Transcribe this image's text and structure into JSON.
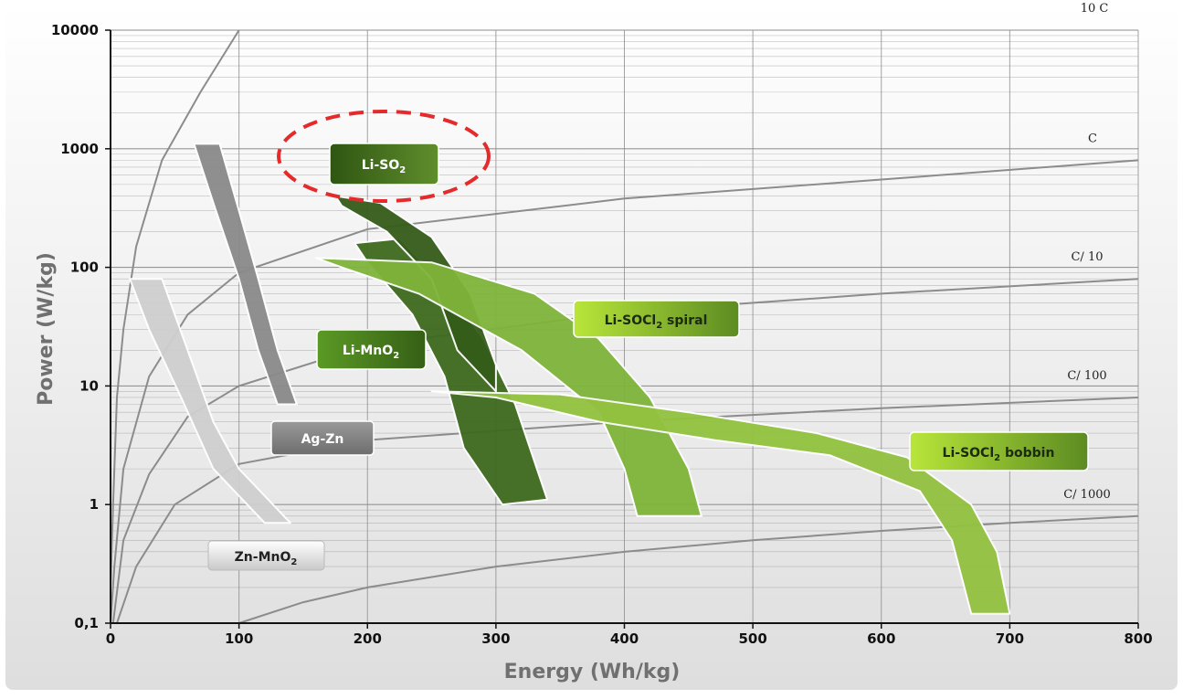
{
  "chart_data": {
    "type": "area",
    "title": "",
    "xlabel": "Energy (Wh/kg)",
    "ylabel": "Power (W/kg)",
    "x_scale": "linear",
    "y_scale": "log",
    "xlim": [
      0,
      800
    ],
    "ylim": [
      0.1,
      10000
    ],
    "x_ticks": [
      0,
      100,
      200,
      300,
      400,
      500,
      600,
      700,
      800
    ],
    "x_tick_labels": [
      "0",
      "100",
      "200",
      "300",
      "400",
      "500",
      "600",
      "700",
      "800"
    ],
    "y_ticks": [
      0.1,
      1,
      10,
      100,
      1000,
      10000
    ],
    "y_tick_labels": [
      "0,1",
      "1",
      "10",
      "100",
      "1000",
      "10000"
    ],
    "grid": "on",
    "rate_lines": [
      {
        "label": "10 C",
        "points": [
          [
            0,
            0.2
          ],
          [
            2,
            1
          ],
          [
            5,
            8
          ],
          [
            10,
            30
          ],
          [
            20,
            150
          ],
          [
            40,
            800
          ],
          [
            70,
            3000
          ],
          [
            100,
            10000
          ]
        ]
      },
      {
        "label": "C",
        "points": [
          [
            0,
            0.1
          ],
          [
            3,
            0.3
          ],
          [
            10,
            2
          ],
          [
            30,
            12
          ],
          [
            60,
            40
          ],
          [
            100,
            90
          ],
          [
            200,
            210
          ],
          [
            400,
            380
          ],
          [
            600,
            550
          ],
          [
            800,
            800
          ]
        ]
      },
      {
        "label": "C/ 10",
        "points": [
          [
            2,
            0.1
          ],
          [
            10,
            0.5
          ],
          [
            30,
            1.8
          ],
          [
            60,
            5.5
          ],
          [
            100,
            10
          ],
          [
            200,
            22
          ],
          [
            400,
            42
          ],
          [
            600,
            60
          ],
          [
            800,
            80
          ]
        ]
      },
      {
        "label": "C/ 100",
        "points": [
          [
            5,
            0.1
          ],
          [
            20,
            0.3
          ],
          [
            50,
            1
          ],
          [
            100,
            2.2
          ],
          [
            200,
            3.5
          ],
          [
            400,
            5
          ],
          [
            600,
            6.5
          ],
          [
            800,
            8
          ]
        ]
      },
      {
        "label": "C/ 1000",
        "points": [
          [
            100,
            0.1
          ],
          [
            150,
            0.15
          ],
          [
            200,
            0.2
          ],
          [
            300,
            0.3
          ],
          [
            400,
            0.4
          ],
          [
            500,
            0.5
          ],
          [
            600,
            0.6
          ],
          [
            700,
            0.7
          ],
          [
            800,
            0.8
          ]
        ]
      }
    ],
    "series": [
      {
        "name": "Zn-MnO₂",
        "color": "#cfcfcf",
        "points": [
          [
            15,
            80
          ],
          [
            40,
            80
          ],
          [
            60,
            20
          ],
          [
            80,
            5
          ],
          [
            100,
            2
          ],
          [
            140,
            0.7
          ],
          [
            120,
            0.7
          ],
          [
            80,
            2
          ],
          [
            55,
            8
          ],
          [
            30,
            30
          ]
        ]
      },
      {
        "name": "Ag-Zn",
        "color": "#8a8a8a",
        "points": [
          [
            65,
            1100
          ],
          [
            85,
            1100
          ],
          [
            100,
            300
          ],
          [
            115,
            80
          ],
          [
            130,
            20
          ],
          [
            145,
            7
          ],
          [
            130,
            7
          ],
          [
            115,
            20
          ],
          [
            100,
            80
          ],
          [
            80,
            350
          ]
        ]
      },
      {
        "name": "Li-MnO₂",
        "color": "#3e6a1e",
        "points": [
          [
            190,
            160
          ],
          [
            225,
            175
          ],
          [
            260,
            70
          ],
          [
            290,
            25
          ],
          [
            315,
            7
          ],
          [
            340,
            1.1
          ],
          [
            305,
            1
          ],
          [
            275,
            3
          ],
          [
            260,
            12
          ],
          [
            235,
            40
          ],
          [
            200,
            110
          ]
        ]
      },
      {
        "name": "Li-SO₂",
        "color": "#355c1a",
        "points": [
          [
            175,
            400
          ],
          [
            210,
            350
          ],
          [
            250,
            180
          ],
          [
            280,
            60
          ],
          [
            300,
            15
          ],
          [
            300,
            9
          ],
          [
            270,
            20
          ],
          [
            250,
            80
          ],
          [
            215,
            200
          ],
          [
            180,
            330
          ]
        ]
      },
      {
        "name": "Li-SOCl₂ spiral",
        "color": "#7fb43a",
        "points": [
          [
            160,
            120
          ],
          [
            250,
            110
          ],
          [
            330,
            60
          ],
          [
            380,
            25
          ],
          [
            420,
            8
          ],
          [
            450,
            2
          ],
          [
            460,
            0.8
          ],
          [
            410,
            0.8
          ],
          [
            400,
            2
          ],
          [
            380,
            6
          ],
          [
            320,
            20
          ],
          [
            240,
            60
          ],
          [
            180,
            100
          ]
        ]
      },
      {
        "name": "Li-SOCl₂ bobbin",
        "color": "#92c23f",
        "points": [
          [
            250,
            9
          ],
          [
            350,
            8.5
          ],
          [
            450,
            6
          ],
          [
            550,
            4
          ],
          [
            620,
            2.5
          ],
          [
            670,
            1
          ],
          [
            690,
            0.4
          ],
          [
            700,
            0.12
          ],
          [
            670,
            0.12
          ],
          [
            655,
            0.5
          ],
          [
            630,
            1.3
          ],
          [
            560,
            2.6
          ],
          [
            470,
            3.5
          ],
          [
            380,
            5
          ],
          [
            300,
            8
          ]
        ]
      }
    ],
    "annotations": [
      {
        "type": "dashed-ellipse",
        "color": "#e42a2a",
        "target": "Li-SO₂"
      }
    ]
  },
  "labels": {
    "zn_mno2": {
      "text": "Zn-MnO",
      "sub": "2"
    },
    "ag_zn": {
      "text": "Ag-Zn",
      "sub": ""
    },
    "li_mno2": {
      "text": "Li-MnO",
      "sub": "2"
    },
    "li_so2": {
      "text": "Li-SO",
      "sub": "2"
    },
    "li_socl2_spiral": {
      "text": "Li-SOCl",
      "sub": "2",
      "tail": " spiral"
    },
    "li_socl2_bobbin": {
      "text": "Li-SOCl",
      "sub": "2",
      "tail": " bobbin"
    }
  },
  "colors": {
    "background_top": "#ffffff",
    "background_bottom": "#e3e3e3",
    "gridline": "#8c8c8c",
    "rate_line": "#8c8c8c",
    "ellipse": "#e42a2a"
  }
}
